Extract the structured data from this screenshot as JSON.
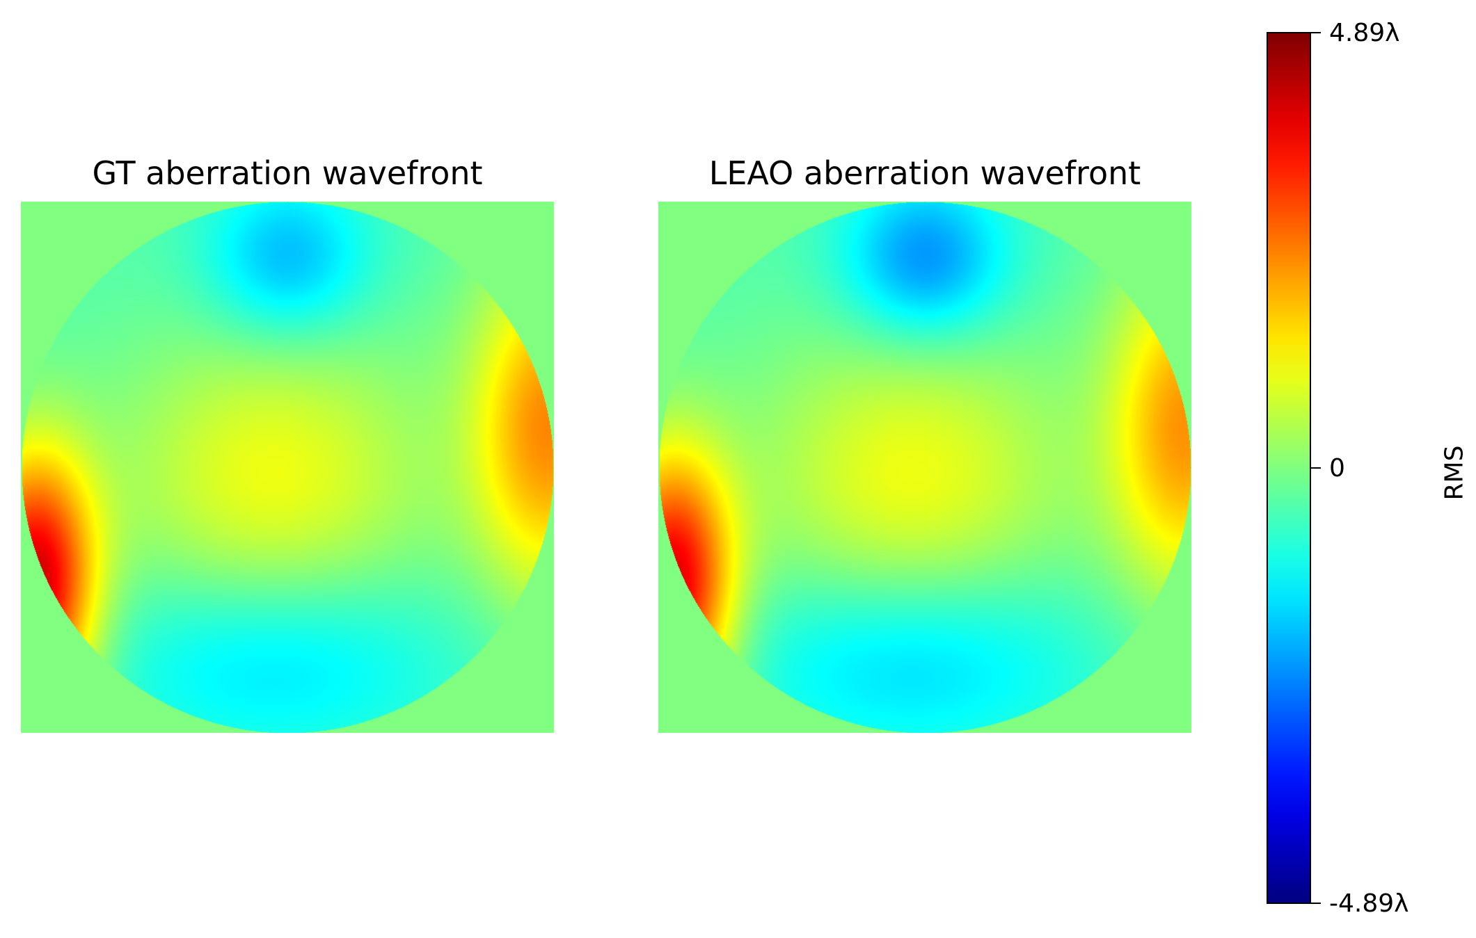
{
  "chart_data": [
    {
      "type": "heatmap",
      "title": "GT aberration wavefront",
      "colormap": "jet",
      "zlim": [
        -4.89,
        4.89
      ],
      "aperture": "circular pupil on square grid",
      "background_value": 0,
      "features": [
        {
          "position": "top-center",
          "value": -2.0
        },
        {
          "position": "center",
          "value": 1.1
        },
        {
          "position": "bottom-center",
          "value": -1.7
        },
        {
          "position": "right-rim",
          "value": 2.3
        },
        {
          "position": "lower-left-rim",
          "value": 4.2
        }
      ]
    },
    {
      "type": "heatmap",
      "title": "LEAO aberration wavefront",
      "colormap": "jet",
      "zlim": [
        -4.89,
        4.89
      ],
      "aperture": "circular pupil on square grid",
      "background_value": 0,
      "features": [
        {
          "position": "top-center",
          "value": -2.4
        },
        {
          "position": "center",
          "value": 1.1
        },
        {
          "position": "bottom-center",
          "value": -1.8
        },
        {
          "position": "right-rim",
          "value": 2.2
        },
        {
          "position": "lower-left-rim",
          "value": 4.0
        }
      ]
    }
  ],
  "colorbar": {
    "label": "RMS",
    "ticks": [
      {
        "value": 4.89,
        "label": "4.89λ"
      },
      {
        "value": 0,
        "label": "0"
      },
      {
        "value": -4.89,
        "label": "-4.89λ"
      }
    ]
  }
}
